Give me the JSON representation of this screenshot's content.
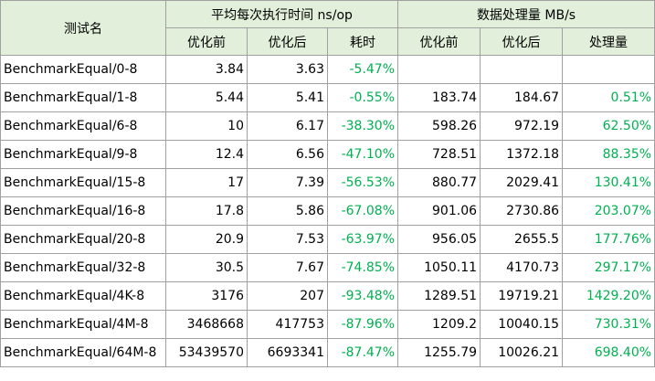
{
  "header": {
    "name": "测试名",
    "group_time": "平均每次执行时间 ns/op",
    "group_throughput": "数据处理量 MB/s",
    "before": "优化前",
    "after": "优化后",
    "time_delta": "耗时",
    "throughput_delta": "处理量"
  },
  "rows": [
    {
      "name": "BenchmarkEqual/0-8",
      "t_before": "3.84",
      "t_after": "3.63",
      "t_delta": "-5.47%",
      "mb_before": "",
      "mb_after": "",
      "mb_delta": ""
    },
    {
      "name": "BenchmarkEqual/1-8",
      "t_before": "5.44",
      "t_after": "5.41",
      "t_delta": "-0.55%",
      "mb_before": "183.74",
      "mb_after": "184.67",
      "mb_delta": "0.51%"
    },
    {
      "name": "BenchmarkEqual/6-8",
      "t_before": "10",
      "t_after": "6.17",
      "t_delta": "-38.30%",
      "mb_before": "598.26",
      "mb_after": "972.19",
      "mb_delta": "62.50%"
    },
    {
      "name": "BenchmarkEqual/9-8",
      "t_before": "12.4",
      "t_after": "6.56",
      "t_delta": "-47.10%",
      "mb_before": "728.51",
      "mb_after": "1372.18",
      "mb_delta": "88.35%"
    },
    {
      "name": "BenchmarkEqual/15-8",
      "t_before": "17",
      "t_after": "7.39",
      "t_delta": "-56.53%",
      "mb_before": "880.77",
      "mb_after": "2029.41",
      "mb_delta": "130.41%"
    },
    {
      "name": "BenchmarkEqual/16-8",
      "t_before": "17.8",
      "t_after": "5.86",
      "t_delta": "-67.08%",
      "mb_before": "901.06",
      "mb_after": "2730.86",
      "mb_delta": "203.07%"
    },
    {
      "name": "BenchmarkEqual/20-8",
      "t_before": "20.9",
      "t_after": "7.53",
      "t_delta": "-63.97%",
      "mb_before": "956.05",
      "mb_after": "2655.5",
      "mb_delta": "177.76%"
    },
    {
      "name": "BenchmarkEqual/32-8",
      "t_before": "30.5",
      "t_after": "7.67",
      "t_delta": "-74.85%",
      "mb_before": "1050.11",
      "mb_after": "4170.73",
      "mb_delta": "297.17%"
    },
    {
      "name": "BenchmarkEqual/4K-8",
      "t_before": "3176",
      "t_after": "207",
      "t_delta": "-93.48%",
      "mb_before": "1289.51",
      "mb_after": "19719.21",
      "mb_delta": "1429.20%"
    },
    {
      "name": "BenchmarkEqual/4M-8",
      "t_before": "3468668",
      "t_after": "417753",
      "t_delta": "-87.96%",
      "mb_before": "1209.2",
      "mb_after": "10040.15",
      "mb_delta": "730.31%"
    },
    {
      "name": "BenchmarkEqual/64M-8",
      "t_before": "53439570",
      "t_after": "6693341",
      "t_delta": "-87.47%",
      "mb_before": "1255.79",
      "mb_after": "10026.21",
      "mb_delta": "698.40%"
    }
  ],
  "colors": {
    "header_bg": "#e2efda",
    "delta_text": "#00b050",
    "grid": "#a0a0a0"
  }
}
